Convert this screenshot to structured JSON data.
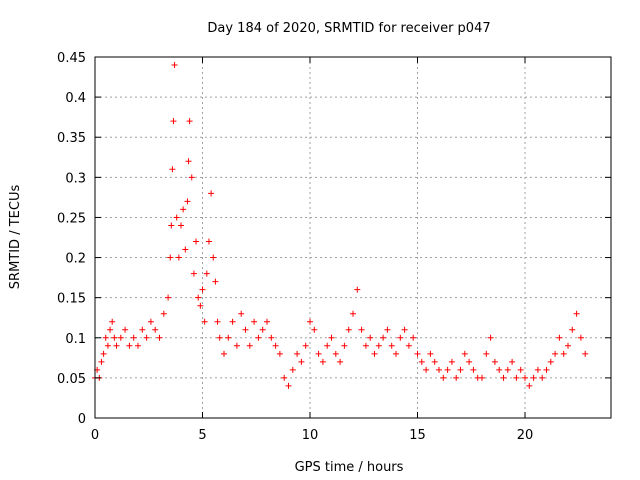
{
  "chart_data": {
    "type": "scatter",
    "title": "Day 184 of 2020, SRMTID for receiver p047",
    "xlabel": "GPS time / hours",
    "ylabel": "SRMTID / TECUs",
    "xlim": [
      0,
      24
    ],
    "ylim": [
      0,
      0.45
    ],
    "x_ticks": [
      0,
      5,
      10,
      15,
      20
    ],
    "x_tick_labels": [
      "0",
      "5",
      "10",
      "15",
      "20"
    ],
    "y_ticks": [
      0,
      0.05,
      0.1,
      0.15,
      0.2,
      0.25,
      0.3,
      0.35,
      0.4,
      0.45
    ],
    "y_tick_labels": [
      "0",
      "0.05",
      "0.1",
      "0.15",
      "0.2",
      "0.25",
      "0.3",
      "0.35",
      "0.4",
      "0.45"
    ],
    "grid": true,
    "marker": "plus",
    "color": "#ff0000",
    "series": [
      {
        "name": "SRMTID",
        "x": [
          0.0,
          0.1,
          0.2,
          0.3,
          0.4,
          0.5,
          0.6,
          0.7,
          0.8,
          0.9,
          1.0,
          1.2,
          1.4,
          1.6,
          1.8,
          2.0,
          2.2,
          2.4,
          2.6,
          2.8,
          3.0,
          3.2,
          3.4,
          3.5,
          3.55,
          3.6,
          3.65,
          3.7,
          3.8,
          3.9,
          4.0,
          4.1,
          4.2,
          4.3,
          4.35,
          4.4,
          4.5,
          4.6,
          4.7,
          4.8,
          4.9,
          5.0,
          5.1,
          5.2,
          5.3,
          5.4,
          5.5,
          5.6,
          5.7,
          5.8,
          6.0,
          6.2,
          6.4,
          6.6,
          6.8,
          7.0,
          7.2,
          7.4,
          7.6,
          7.8,
          8.0,
          8.2,
          8.4,
          8.6,
          8.8,
          9.0,
          9.2,
          9.4,
          9.6,
          9.8,
          10.0,
          10.2,
          10.4,
          10.6,
          10.8,
          11.0,
          11.2,
          11.4,
          11.6,
          11.8,
          12.0,
          12.2,
          12.4,
          12.6,
          12.8,
          13.0,
          13.2,
          13.4,
          13.6,
          13.8,
          14.0,
          14.2,
          14.4,
          14.6,
          14.8,
          15.0,
          15.2,
          15.4,
          15.6,
          15.8,
          16.0,
          16.2,
          16.4,
          16.6,
          16.8,
          17.0,
          17.2,
          17.4,
          17.6,
          17.8,
          18.0,
          18.2,
          18.4,
          18.6,
          18.8,
          19.0,
          19.2,
          19.4,
          19.6,
          19.8,
          20.0,
          20.2,
          20.4,
          20.6,
          20.8,
          21.0,
          21.2,
          21.4,
          21.6,
          21.8,
          22.0,
          22.2,
          22.4,
          22.6,
          22.8
        ],
        "y": [
          0.05,
          0.06,
          0.05,
          0.07,
          0.08,
          0.1,
          0.09,
          0.11,
          0.12,
          0.1,
          0.09,
          0.1,
          0.11,
          0.09,
          0.1,
          0.09,
          0.11,
          0.1,
          0.12,
          0.11,
          0.1,
          0.13,
          0.15,
          0.2,
          0.24,
          0.31,
          0.37,
          0.44,
          0.25,
          0.2,
          0.24,
          0.26,
          0.21,
          0.27,
          0.32,
          0.37,
          0.3,
          0.18,
          0.22,
          0.15,
          0.14,
          0.16,
          0.12,
          0.18,
          0.22,
          0.28,
          0.2,
          0.17,
          0.12,
          0.1,
          0.08,
          0.1,
          0.12,
          0.09,
          0.13,
          0.11,
          0.09,
          0.12,
          0.1,
          0.11,
          0.12,
          0.1,
          0.09,
          0.08,
          0.05,
          0.04,
          0.06,
          0.08,
          0.07,
          0.09,
          0.12,
          0.11,
          0.08,
          0.07,
          0.09,
          0.1,
          0.08,
          0.07,
          0.09,
          0.11,
          0.13,
          0.16,
          0.11,
          0.09,
          0.1,
          0.08,
          0.09,
          0.1,
          0.11,
          0.09,
          0.08,
          0.1,
          0.11,
          0.09,
          0.1,
          0.08,
          0.07,
          0.06,
          0.08,
          0.07,
          0.06,
          0.05,
          0.06,
          0.07,
          0.05,
          0.06,
          0.08,
          0.07,
          0.06,
          0.05,
          0.05,
          0.08,
          0.1,
          0.07,
          0.06,
          0.05,
          0.06,
          0.07,
          0.05,
          0.06,
          0.05,
          0.04,
          0.05,
          0.06,
          0.05,
          0.06,
          0.07,
          0.08,
          0.1,
          0.08,
          0.09,
          0.11,
          0.13,
          0.1,
          0.08
        ]
      }
    ]
  }
}
